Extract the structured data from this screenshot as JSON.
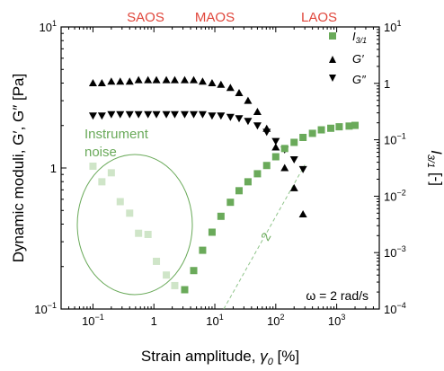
{
  "chart_data": {
    "type": "scatter",
    "x_scale": "log",
    "y_left_scale": "log",
    "y_right_scale": "log",
    "xlim": [
      0.03,
      5000
    ],
    "ylim_left": [
      0.1,
      10
    ],
    "ylim_right": [
      0.0001,
      10
    ],
    "xlabel_main": "Strain amplitude, ",
    "xlabel_sym": "γ",
    "xlabel_sub": "0",
    "xlabel_unit": " [%]",
    "ylabel_left": "Dynamic moduli, G′, G″ [Pa]",
    "ylabel_right": "I3/1 [-]",
    "x_ticks": [
      "10−1",
      "1",
      "101",
      "102",
      "103"
    ],
    "y_left_ticks": [
      "10−1",
      "1",
      "101"
    ],
    "y_right_ticks": [
      "10−4",
      "10−3",
      "10−2",
      "10−1",
      "1",
      "101"
    ],
    "regions": [
      "SAOS",
      "MAOS",
      "LAOS"
    ],
    "annotations": {
      "noise": [
        "Instrument",
        "noise"
      ],
      "slope": "2",
      "condition": "ω = 2 rad/s"
    },
    "legend_position": "top-right",
    "colors": {
      "green": "#6aaa5a",
      "noise_green": "#cfe5c8",
      "region_red": "#e0463b",
      "black": "#000000",
      "slope_line": "#8fc48a"
    },
    "series": [
      {
        "name": "G′",
        "marker": "triangle-up",
        "axis": "left",
        "x": [
          0.1,
          0.14,
          0.2,
          0.28,
          0.4,
          0.56,
          0.8,
          1.1,
          1.6,
          2.2,
          3.2,
          4.5,
          6.3,
          9,
          12.6,
          18,
          25,
          35,
          50,
          71,
          100,
          140,
          200,
          280
        ],
        "y": [
          4.0,
          4.0,
          4.1,
          4.1,
          4.1,
          4.2,
          4.2,
          4.2,
          4.2,
          4.2,
          4.2,
          4.2,
          4.1,
          4.0,
          3.9,
          3.7,
          3.4,
          3.0,
          2.5,
          1.9,
          1.4,
          1.0,
          0.72,
          0.47
        ]
      },
      {
        "name": "G″",
        "marker": "triangle-down",
        "axis": "left",
        "x": [
          0.1,
          0.14,
          0.2,
          0.28,
          0.4,
          0.56,
          0.8,
          1.1,
          1.6,
          2.2,
          3.2,
          4.5,
          6.3,
          9,
          12.6,
          18,
          25,
          35,
          50,
          71,
          100,
          140,
          200,
          280
        ],
        "y": [
          2.35,
          2.35,
          2.4,
          2.4,
          2.4,
          2.4,
          2.4,
          2.4,
          2.4,
          2.4,
          2.4,
          2.4,
          2.4,
          2.35,
          2.35,
          2.3,
          2.25,
          2.15,
          2.0,
          1.8,
          1.55,
          1.35,
          1.15,
          0.98
        ]
      },
      {
        "name": "I3/1",
        "marker": "square",
        "axis": "right",
        "x": [
          3.2,
          4.5,
          6.3,
          9,
          12.6,
          18,
          25,
          35,
          50,
          71,
          100,
          140,
          200,
          280,
          400,
          560,
          800,
          1100,
          1600,
          2000
        ],
        "y": [
          0.00022,
          0.00048,
          0.0011,
          0.0023,
          0.0044,
          0.0078,
          0.0125,
          0.018,
          0.025,
          0.035,
          0.05,
          0.07,
          0.09,
          0.11,
          0.13,
          0.15,
          0.16,
          0.17,
          0.175,
          0.18
        ]
      },
      {
        "name": "I3/1 (instrument noise)",
        "marker": "square",
        "axis": "right",
        "x": [
          0.1,
          0.14,
          0.2,
          0.28,
          0.4,
          0.56,
          0.8,
          1.1,
          1.6,
          2.2
        ],
        "y": [
          0.034,
          0.018,
          0.026,
          0.008,
          0.005,
          0.0022,
          0.0021,
          0.0007,
          0.0004,
          0.00026
        ]
      }
    ],
    "slope_line": {
      "x": [
        14,
        300
      ],
      "y": [
        0.0001,
        0.036
      ]
    }
  }
}
